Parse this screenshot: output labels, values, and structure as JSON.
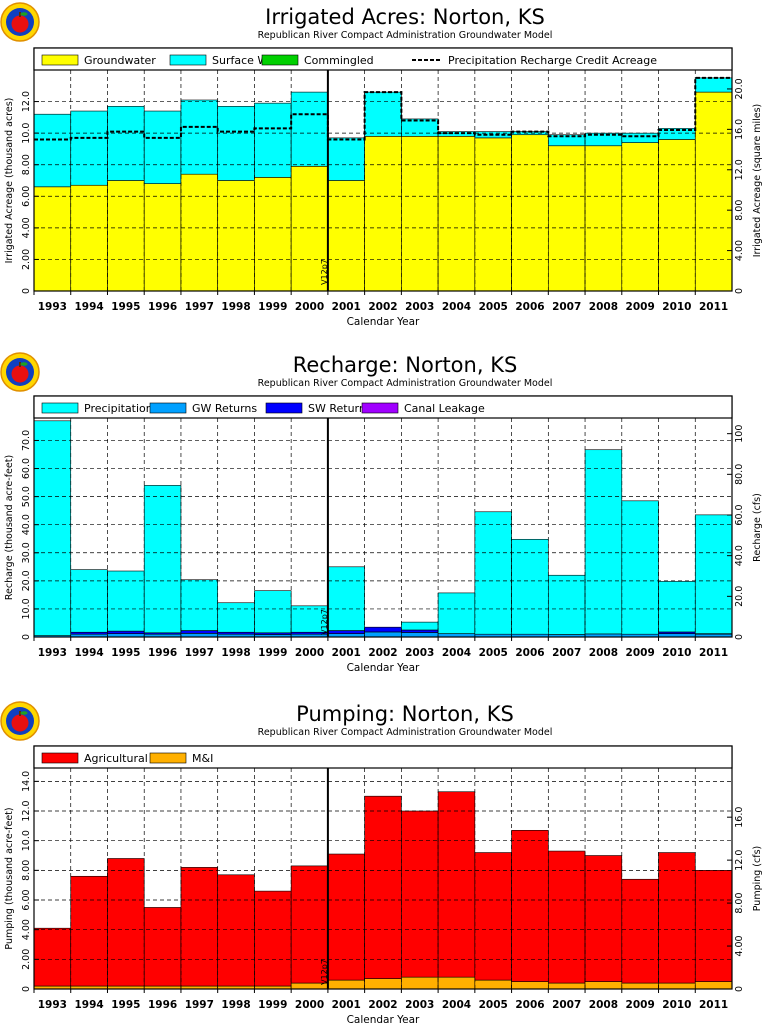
{
  "colors": {
    "groundwater": "#ffff00",
    "surface_water": "#00ffff",
    "commingled": "#00d000",
    "precip": "#00ffff",
    "gw_returns": "#00a0ff",
    "sw_returns": "#0000ff",
    "canal_leakage": "#a000ff",
    "agricultural": "#ff0000",
    "mi": "#ffb000"
  },
  "shared": {
    "years": [
      "1993",
      "1994",
      "1995",
      "1996",
      "1997",
      "1998",
      "1999",
      "2000",
      "2001",
      "2002",
      "2003",
      "2004",
      "2005",
      "2006",
      "2007",
      "2008",
      "2009",
      "2010",
      "2011"
    ],
    "xlabel": "Calendar Year",
    "subtitle": "Republican River Compact Administration Groundwater Model",
    "marker_label": "V12p7"
  },
  "chart_data": [
    {
      "type": "area",
      "stacked": true,
      "title": "Irrigated Acres: Norton, KS",
      "ylabel": "Irrigated Acreage (thousand acres)",
      "y2label": "Irrigated Acreage (square miles)",
      "ylim": [
        0,
        14
      ],
      "yticks": [
        "0",
        "2.00",
        "4.00",
        "6.00",
        "8.00",
        "10.0",
        "12.0"
      ],
      "y2lim": [
        0,
        21.875
      ],
      "y2ticks": [
        "0",
        "4.00",
        "8.00",
        "12.0",
        "16.0",
        "20.0"
      ],
      "legend": [
        {
          "label": "Groundwater",
          "kind": "box",
          "color_key": "groundwater"
        },
        {
          "label": "Surface Water",
          "kind": "box",
          "color_key": "surface_water"
        },
        {
          "label": "Commingled",
          "kind": "box",
          "color_key": "commingled"
        },
        {
          "label": "Precipitation Recharge Credit Acreage",
          "kind": "dash"
        }
      ],
      "series": [
        {
          "name": "Groundwater",
          "color_key": "groundwater",
          "values": [
            6.6,
            6.7,
            7.0,
            6.8,
            7.4,
            7.0,
            7.2,
            7.9,
            7.0,
            9.8,
            9.8,
            9.8,
            9.7,
            9.9,
            9.2,
            9.2,
            9.4,
            9.6,
            12.6
          ]
        },
        {
          "name": "Surface Water",
          "color_key": "surface_water",
          "values": [
            4.6,
            4.7,
            4.7,
            4.6,
            4.7,
            4.7,
            4.7,
            4.7,
            2.7,
            2.8,
            1.1,
            0.3,
            0.4,
            0.2,
            0.7,
            0.8,
            0.6,
            0.7,
            0.9
          ]
        },
        {
          "name": "Commingled",
          "color_key": "commingled",
          "values": [
            0,
            0,
            0,
            0,
            0,
            0,
            0,
            0,
            0,
            0,
            0,
            0,
            0,
            0,
            0,
            0,
            0,
            0,
            0
          ]
        }
      ],
      "precip_line": [
        9.6,
        9.7,
        10.1,
        9.7,
        10.4,
        10.1,
        10.3,
        11.2,
        9.6,
        12.6,
        10.8,
        10.0,
        9.9,
        10.1,
        9.8,
        9.9,
        9.8,
        10.2,
        13.5
      ]
    },
    {
      "type": "area",
      "stacked": true,
      "title": "Recharge: Norton, KS",
      "ylabel": "Recharge (thousand acre-feet)",
      "y2label": "Recharge (cfs)",
      "ylim": [
        0,
        78
      ],
      "yticks": [
        "0",
        "10.0",
        "20.0",
        "30.0",
        "40.0",
        "50.0",
        "60.0",
        "70.0"
      ],
      "y2lim": [
        0,
        107.7
      ],
      "y2ticks": [
        "0",
        "20.0",
        "40.0",
        "60.0",
        "80.0",
        "100"
      ],
      "legend": [
        {
          "label": "Precipitation",
          "kind": "box",
          "color_key": "precip"
        },
        {
          "label": "GW Returns",
          "kind": "box",
          "color_key": "gw_returns"
        },
        {
          "label": "SW Returns",
          "kind": "box",
          "color_key": "sw_returns"
        },
        {
          "label": "Canal Leakage",
          "kind": "box",
          "color_key": "canal_leakage"
        }
      ],
      "series": [
        {
          "name": "GW Returns",
          "color_key": "gw_returns",
          "values": [
            0.5,
            1.0,
            1.2,
            1.0,
            1.3,
            1.0,
            0.9,
            1.0,
            1.2,
            1.8,
            1.6,
            1.2,
            1.0,
            1.0,
            0.9,
            1.1,
            1.0,
            1.2,
            1.0
          ]
        },
        {
          "name": "SW Returns",
          "color_key": "sw_returns",
          "values": [
            0.0,
            0.7,
            0.9,
            0.5,
            1.0,
            0.7,
            0.6,
            0.7,
            1.1,
            1.7,
            0.9,
            0.0,
            0.0,
            0.0,
            0.0,
            0.0,
            0.0,
            0.6,
            0.2
          ]
        },
        {
          "name": "Canal Leakage",
          "color_key": "canal_leakage",
          "values": [
            0,
            0,
            0,
            0,
            0,
            0,
            0,
            0,
            0,
            0,
            0,
            0,
            0,
            0,
            0,
            0,
            0,
            0,
            0
          ]
        },
        {
          "name": "Precipitation",
          "color_key": "precip",
          "values": [
            76.5,
            22.3,
            21.4,
            52.5,
            18.1,
            10.5,
            15.0,
            9.4,
            22.7,
            0.0,
            2.8,
            14.5,
            43.6,
            33.8,
            21.1,
            65.6,
            47.5,
            18.0,
            42.3
          ]
        }
      ]
    },
    {
      "type": "area",
      "stacked": true,
      "title": "Pumping: Norton, KS",
      "ylabel": "Pumping (thousand acre-feet)",
      "y2label": "Pumping (cfs)",
      "ylim": [
        0,
        14.9
      ],
      "yticks": [
        "0",
        "2.00",
        "4.00",
        "6.00",
        "8.00",
        "10.0",
        "12.0",
        "14.0"
      ],
      "y2lim": [
        0,
        20.58
      ],
      "y2ticks": [
        "0",
        "4.00",
        "8.00",
        "12.0",
        "16.0"
      ],
      "legend": [
        {
          "label": "Agricultural",
          "kind": "box",
          "color_key": "agricultural"
        },
        {
          "label": "M&I",
          "kind": "box",
          "color_key": "mi"
        }
      ],
      "series": [
        {
          "name": "M&I",
          "color_key": "mi",
          "values": [
            0.2,
            0.2,
            0.2,
            0.2,
            0.2,
            0.2,
            0.2,
            0.4,
            0.6,
            0.7,
            0.8,
            0.8,
            0.6,
            0.5,
            0.4,
            0.5,
            0.4,
            0.4,
            0.5
          ]
        },
        {
          "name": "Agricultural",
          "color_key": "agricultural",
          "values": [
            3.9,
            7.4,
            8.6,
            5.3,
            8.0,
            7.5,
            6.4,
            7.9,
            8.5,
            12.3,
            11.2,
            12.5,
            8.6,
            10.2,
            8.9,
            8.5,
            7.0,
            8.8,
            7.5
          ]
        }
      ]
    }
  ]
}
